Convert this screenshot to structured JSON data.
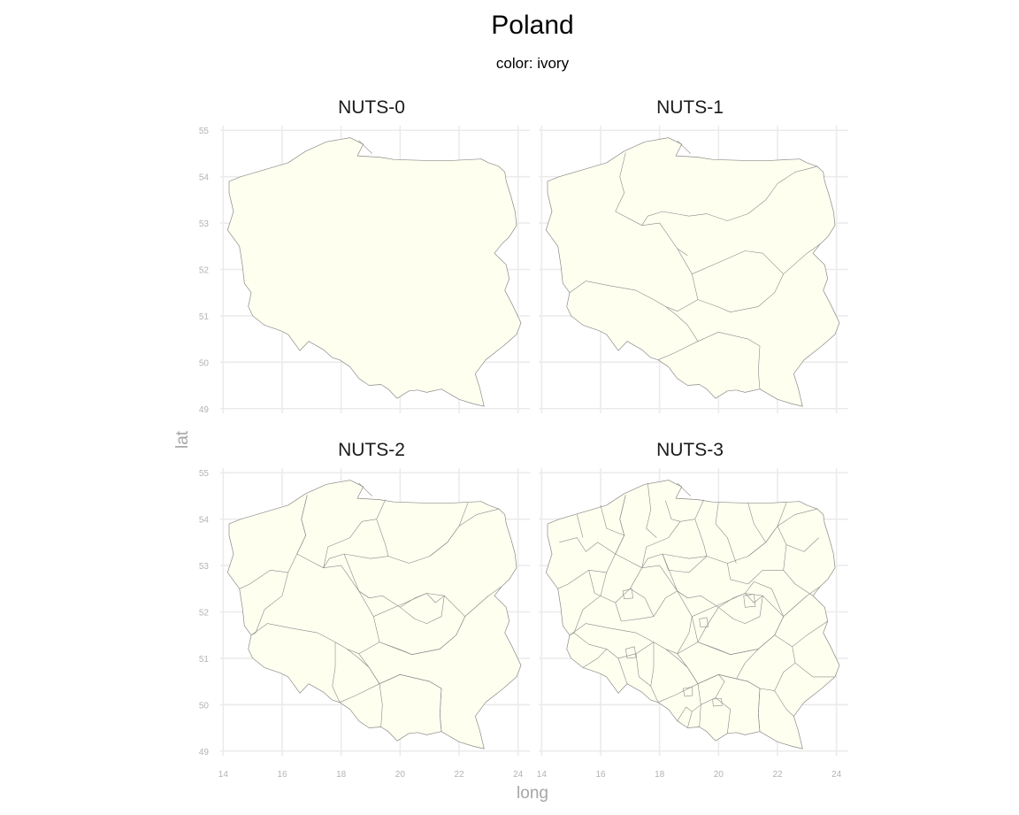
{
  "title": "Poland",
  "subtitle": "color: ivory",
  "panels": [
    {
      "label": "NUTS-0",
      "level": 0
    },
    {
      "label": "NUTS-1",
      "level": 1
    },
    {
      "label": "NUTS-2",
      "level": 2
    },
    {
      "label": "NUTS-3",
      "level": 3
    }
  ],
  "axes": {
    "xlabel": "long",
    "ylabel": "lat",
    "x_ticks": [
      14,
      16,
      18,
      20,
      22,
      24
    ],
    "y_ticks": [
      49,
      50,
      51,
      52,
      53,
      54,
      55
    ],
    "xlim": [
      13.9,
      24.4
    ],
    "ylim": [
      48.9,
      55.1
    ]
  },
  "fill_color": "#fffff0",
  "border_color": "#8a8a8a",
  "grid_color": "#ebebeb",
  "outline": [
    [
      14.2,
      53.9
    ],
    [
      14.6,
      54.0
    ],
    [
      15.4,
      54.15
    ],
    [
      16.2,
      54.3
    ],
    [
      16.8,
      54.55
    ],
    [
      17.5,
      54.75
    ],
    [
      18.3,
      54.84
    ],
    [
      18.75,
      54.7
    ],
    [
      18.55,
      54.45
    ],
    [
      19.3,
      54.42
    ],
    [
      19.8,
      54.37
    ],
    [
      20.8,
      54.35
    ],
    [
      21.8,
      54.35
    ],
    [
      22.75,
      54.38
    ],
    [
      23.0,
      54.3
    ],
    [
      23.35,
      54.22
    ],
    [
      23.55,
      54.1
    ],
    [
      23.6,
      53.9
    ],
    [
      23.75,
      53.6
    ],
    [
      23.9,
      53.25
    ],
    [
      23.95,
      52.95
    ],
    [
      23.7,
      52.7
    ],
    [
      23.45,
      52.55
    ],
    [
      23.2,
      52.35
    ],
    [
      23.6,
      52.1
    ],
    [
      23.7,
      51.8
    ],
    [
      23.55,
      51.55
    ],
    [
      23.8,
      51.25
    ],
    [
      24.1,
      50.85
    ],
    [
      23.95,
      50.6
    ],
    [
      23.5,
      50.35
    ],
    [
      22.9,
      50.05
    ],
    [
      22.55,
      49.75
    ],
    [
      22.7,
      49.45
    ],
    [
      22.85,
      49.05
    ],
    [
      22.5,
      49.1
    ],
    [
      22.0,
      49.2
    ],
    [
      21.4,
      49.42
    ],
    [
      20.9,
      49.35
    ],
    [
      20.6,
      49.4
    ],
    [
      20.3,
      49.38
    ],
    [
      19.9,
      49.22
    ],
    [
      19.6,
      49.42
    ],
    [
      19.35,
      49.52
    ],
    [
      18.95,
      49.5
    ],
    [
      18.6,
      49.65
    ],
    [
      18.3,
      49.9
    ],
    [
      17.95,
      50.05
    ],
    [
      17.7,
      50.1
    ],
    [
      17.4,
      50.27
    ],
    [
      16.9,
      50.45
    ],
    [
      16.6,
      50.25
    ],
    [
      16.2,
      50.6
    ],
    [
      15.95,
      50.68
    ],
    [
      15.4,
      50.8
    ],
    [
      15.0,
      51.0
    ],
    [
      14.85,
      51.2
    ],
    [
      14.95,
      51.5
    ],
    [
      14.72,
      51.7
    ],
    [
      14.65,
      52.1
    ],
    [
      14.55,
      52.5
    ],
    [
      14.15,
      52.85
    ],
    [
      14.35,
      53.25
    ],
    [
      14.2,
      53.65
    ]
  ],
  "levels": {
    "nuts1": [
      [
        [
          16.85,
          54.52
        ],
        [
          16.65,
          54.0
        ],
        [
          16.8,
          53.65
        ],
        [
          16.5,
          53.25
        ],
        [
          17.4,
          52.95
        ],
        [
          18.0,
          53.0
        ],
        [
          18.6,
          52.45
        ],
        [
          18.95,
          52.3
        ]
      ],
      [
        [
          17.4,
          52.95
        ],
        [
          17.6,
          53.15
        ],
        [
          18.1,
          53.25
        ],
        [
          19.0,
          53.15
        ],
        [
          19.6,
          53.2
        ],
        [
          20.3,
          53.05
        ],
        [
          21.0,
          53.2
        ],
        [
          21.6,
          53.5
        ],
        [
          22.0,
          53.85
        ],
        [
          22.6,
          54.1
        ],
        [
          23.35,
          54.22
        ]
      ],
      [
        [
          18.6,
          52.45
        ],
        [
          19.1,
          51.9
        ],
        [
          19.3,
          51.35
        ],
        [
          19.95,
          51.2
        ],
        [
          20.4,
          51.08
        ],
        [
          21.35,
          51.2
        ],
        [
          21.9,
          51.5
        ],
        [
          22.2,
          51.9
        ],
        [
          23.0,
          52.35
        ],
        [
          23.45,
          52.55
        ]
      ],
      [
        [
          19.1,
          51.9
        ],
        [
          20.0,
          52.15
        ],
        [
          20.9,
          52.4
        ],
        [
          21.5,
          52.35
        ],
        [
          22.2,
          51.9
        ]
      ],
      [
        [
          14.95,
          51.5
        ],
        [
          15.5,
          51.75
        ],
        [
          16.3,
          51.65
        ],
        [
          17.2,
          51.55
        ],
        [
          17.8,
          51.35
        ],
        [
          18.2,
          51.2
        ]
      ],
      [
        [
          18.2,
          51.2
        ],
        [
          18.6,
          51.0
        ],
        [
          18.95,
          50.8
        ],
        [
          19.3,
          50.45
        ],
        [
          18.5,
          50.2
        ],
        [
          17.95,
          50.05
        ]
      ],
      [
        [
          18.2,
          51.2
        ],
        [
          18.6,
          51.1
        ],
        [
          19.3,
          51.35
        ]
      ],
      [
        [
          19.3,
          50.45
        ],
        [
          20.0,
          50.65
        ],
        [
          21.0,
          50.5
        ],
        [
          21.4,
          50.35
        ],
        [
          21.35,
          49.8
        ],
        [
          21.4,
          49.42
        ]
      ]
    ],
    "nuts2": [
      [
        [
          16.85,
          54.52
        ],
        [
          16.65,
          54.0
        ],
        [
          16.8,
          53.65
        ],
        [
          16.5,
          53.25
        ],
        [
          16.2,
          52.85
        ]
      ],
      [
        [
          16.2,
          52.85
        ],
        [
          15.6,
          52.9
        ],
        [
          14.9,
          52.6
        ],
        [
          14.55,
          52.5
        ]
      ],
      [
        [
          16.2,
          52.85
        ],
        [
          16.0,
          52.35
        ],
        [
          15.4,
          52.05
        ],
        [
          15.1,
          51.55
        ],
        [
          14.95,
          51.5
        ]
      ],
      [
        [
          17.4,
          52.95
        ],
        [
          17.55,
          53.4
        ],
        [
          18.3,
          53.6
        ],
        [
          18.7,
          53.95
        ],
        [
          19.2,
          54.0
        ],
        [
          19.5,
          54.42
        ]
      ],
      [
        [
          18.1,
          53.25
        ],
        [
          18.6,
          52.45
        ],
        [
          18.95,
          52.3
        ],
        [
          19.4,
          52.35
        ],
        [
          20.0,
          52.1
        ]
      ],
      [
        [
          19.2,
          54.0
        ],
        [
          19.5,
          53.45
        ],
        [
          19.6,
          53.2
        ]
      ],
      [
        [
          21.0,
          53.2
        ],
        [
          21.6,
          53.5
        ],
        [
          22.0,
          53.85
        ],
        [
          22.3,
          54.35
        ]
      ],
      [
        [
          19.3,
          51.35
        ],
        [
          19.9,
          51.2
        ],
        [
          20.4,
          51.08
        ],
        [
          21.35,
          51.2
        ]
      ],
      [
        [
          17.95,
          50.05
        ],
        [
          17.7,
          50.4
        ],
        [
          17.8,
          50.8
        ],
        [
          17.8,
          51.35
        ]
      ],
      [
        [
          18.6,
          51.1
        ],
        [
          18.95,
          50.8
        ],
        [
          19.3,
          50.45
        ],
        [
          19.4,
          50.0
        ],
        [
          19.35,
          49.52
        ]
      ],
      [
        [
          19.3,
          50.45
        ],
        [
          20.0,
          50.65
        ],
        [
          21.0,
          50.5
        ],
        [
          21.4,
          50.35
        ]
      ],
      [
        [
          21.4,
          50.35
        ],
        [
          21.35,
          49.8
        ],
        [
          21.4,
          49.42
        ]
      ],
      [
        [
          21.35,
          51.2
        ],
        [
          21.9,
          51.5
        ],
        [
          22.2,
          51.9
        ],
        [
          23.0,
          52.35
        ]
      ],
      [
        [
          20.0,
          52.1
        ],
        [
          20.5,
          52.3
        ],
        [
          20.9,
          52.4
        ],
        [
          21.2,
          52.2
        ],
        [
          21.5,
          52.35
        ],
        [
          21.4,
          51.9
        ],
        [
          20.9,
          51.75
        ],
        [
          20.5,
          51.85
        ],
        [
          20.0,
          52.1
        ]
      ]
    ],
    "nuts3_extra": [
      [
        [
          14.6,
          53.5
        ],
        [
          15.2,
          53.6
        ],
        [
          15.5,
          53.3
        ],
        [
          15.9,
          53.5
        ],
        [
          16.5,
          53.25
        ]
      ],
      [
        [
          15.2,
          54.1
        ],
        [
          15.4,
          53.6
        ]
      ],
      [
        [
          16.0,
          54.3
        ],
        [
          16.2,
          53.8
        ],
        [
          16.8,
          53.65
        ]
      ],
      [
        [
          17.6,
          54.78
        ],
        [
          17.7,
          54.2
        ],
        [
          17.55,
          53.8
        ],
        [
          17.9,
          53.6
        ]
      ],
      [
        [
          18.2,
          54.4
        ],
        [
          18.4,
          54.0
        ],
        [
          18.7,
          53.95
        ]
      ],
      [
        [
          20.0,
          54.37
        ],
        [
          19.9,
          53.9
        ],
        [
          20.3,
          53.6
        ],
        [
          20.6,
          53.05
        ]
      ],
      [
        [
          21.0,
          54.35
        ],
        [
          21.2,
          53.9
        ],
        [
          21.6,
          53.5
        ]
      ],
      [
        [
          22.0,
          53.85
        ],
        [
          22.3,
          53.45
        ],
        [
          22.9,
          53.3
        ],
        [
          23.4,
          53.6
        ]
      ],
      [
        [
          22.3,
          53.45
        ],
        [
          22.2,
          52.9
        ],
        [
          22.6,
          52.6
        ],
        [
          23.2,
          52.35
        ]
      ],
      [
        [
          20.3,
          53.05
        ],
        [
          20.4,
          52.7
        ],
        [
          21.0,
          52.6
        ],
        [
          21.5,
          52.9
        ],
        [
          22.2,
          52.9
        ]
      ],
      [
        [
          15.6,
          52.9
        ],
        [
          15.8,
          52.4
        ],
        [
          16.5,
          52.2
        ],
        [
          17.0,
          52.5
        ],
        [
          17.4,
          52.95
        ]
      ],
      [
        [
          16.5,
          52.2
        ],
        [
          16.7,
          51.8
        ],
        [
          17.3,
          51.85
        ],
        [
          17.8,
          51.9
        ],
        [
          18.2,
          52.3
        ],
        [
          18.6,
          52.45
        ]
      ],
      [
        [
          17.0,
          52.5
        ],
        [
          17.5,
          52.3
        ],
        [
          17.8,
          51.9
        ]
      ],
      [
        [
          18.1,
          53.25
        ],
        [
          18.3,
          52.9
        ],
        [
          19.0,
          52.85
        ],
        [
          19.6,
          53.2
        ]
      ],
      [
        [
          15.1,
          51.55
        ],
        [
          15.6,
          51.3
        ],
        [
          16.2,
          51.2
        ],
        [
          16.6,
          51.0
        ],
        [
          17.2,
          51.1
        ],
        [
          17.8,
          51.35
        ]
      ],
      [
        [
          15.4,
          50.8
        ],
        [
          15.9,
          51.0
        ],
        [
          16.2,
          51.2
        ]
      ],
      [
        [
          16.6,
          51.0
        ],
        [
          16.9,
          50.45
        ]
      ],
      [
        [
          17.2,
          51.1
        ],
        [
          17.3,
          50.6
        ],
        [
          17.7,
          50.4
        ]
      ],
      [
        [
          18.6,
          51.1
        ],
        [
          19.0,
          51.55
        ],
        [
          19.1,
          51.9
        ]
      ],
      [
        [
          19.3,
          51.35
        ],
        [
          19.6,
          51.7
        ],
        [
          20.0,
          52.1
        ]
      ],
      [
        [
          19.4,
          50.0
        ],
        [
          19.9,
          50.15
        ],
        [
          20.4,
          49.9
        ],
        [
          20.3,
          49.38
        ]
      ],
      [
        [
          19.9,
          50.15
        ],
        [
          20.2,
          50.5
        ],
        [
          20.0,
          50.65
        ]
      ],
      [
        [
          20.6,
          50.55
        ],
        [
          20.9,
          50.9
        ],
        [
          21.35,
          51.2
        ]
      ],
      [
        [
          21.4,
          50.35
        ],
        [
          21.9,
          50.3
        ],
        [
          22.2,
          50.7
        ],
        [
          22.6,
          50.9
        ],
        [
          23.2,
          50.6
        ],
        [
          23.95,
          50.6
        ]
      ],
      [
        [
          21.9,
          50.3
        ],
        [
          22.3,
          49.9
        ],
        [
          22.55,
          49.75
        ]
      ],
      [
        [
          21.9,
          51.5
        ],
        [
          22.5,
          51.25
        ],
        [
          23.0,
          51.5
        ],
        [
          23.7,
          51.8
        ]
      ],
      [
        [
          22.5,
          51.25
        ],
        [
          22.6,
          50.9
        ]
      ],
      [
        [
          20.9,
          52.4
        ],
        [
          21.2,
          52.65
        ],
        [
          21.8,
          52.5
        ],
        [
          22.2,
          51.9
        ]
      ],
      [
        [
          18.95,
          49.5
        ],
        [
          19.1,
          49.85
        ],
        [
          19.4,
          50.0
        ]
      ],
      [
        [
          18.6,
          49.65
        ],
        [
          18.9,
          49.95
        ],
        [
          19.1,
          49.85
        ]
      ]
    ],
    "nuts3_enclaves": [
      [
        [
          16.75,
          52.45
        ],
        [
          17.05,
          52.5
        ],
        [
          17.1,
          52.3
        ],
        [
          16.8,
          52.28
        ]
      ],
      [
        [
          19.35,
          51.85
        ],
        [
          19.6,
          51.88
        ],
        [
          19.65,
          51.68
        ],
        [
          19.38,
          51.68
        ]
      ],
      [
        [
          20.85,
          52.35
        ],
        [
          21.2,
          52.38
        ],
        [
          21.25,
          52.12
        ],
        [
          20.9,
          52.1
        ]
      ],
      [
        [
          16.85,
          51.2
        ],
        [
          17.15,
          51.25
        ],
        [
          17.2,
          51.02
        ],
        [
          16.9,
          51.0
        ]
      ],
      [
        [
          19.8,
          50.12
        ],
        [
          20.1,
          50.13
        ],
        [
          20.12,
          49.98
        ],
        [
          19.82,
          49.97
        ]
      ],
      [
        [
          18.8,
          50.35
        ],
        [
          19.1,
          50.38
        ],
        [
          19.12,
          50.2
        ],
        [
          18.85,
          50.18
        ]
      ]
    ]
  }
}
